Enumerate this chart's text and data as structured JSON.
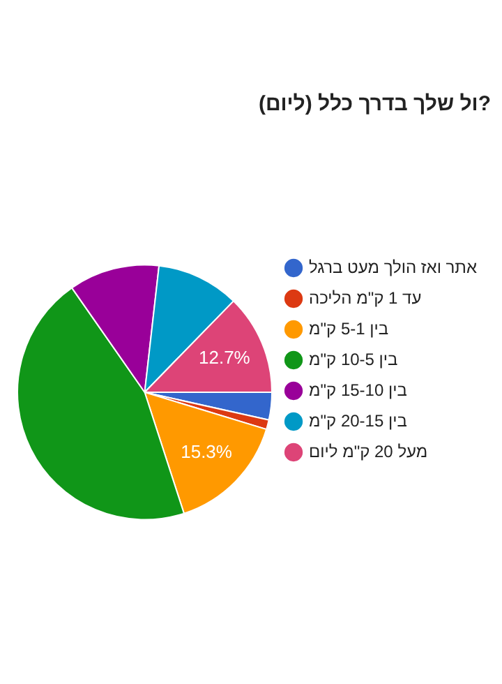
{
  "chart_data": {
    "type": "pie",
    "title": "ול שלך בדרך כלל (ליום)?",
    "categories": [
      "אתר ואז הולך מעט ברגל",
      "עד 1 ק\"מ הליכה",
      "בין 5-1 ק\"מ",
      "בין 10-5 ק\"מ",
      "בין 15-10 ק\"מ",
      "בין 20-15 ק\"מ",
      "מעל 20 ק\"מ ליום"
    ],
    "values": [
      3.5,
      1.2,
      15.3,
      45.3,
      11.5,
      10.5,
      12.7
    ],
    "colors": [
      "#3366cc",
      "#dc3912",
      "#ff9900",
      "#109618",
      "#990099",
      "#0099c6",
      "#dd4477"
    ],
    "value_labels": [
      null,
      null,
      "15.3%",
      null,
      null,
      null,
      "12.7%"
    ],
    "legend": "right"
  }
}
